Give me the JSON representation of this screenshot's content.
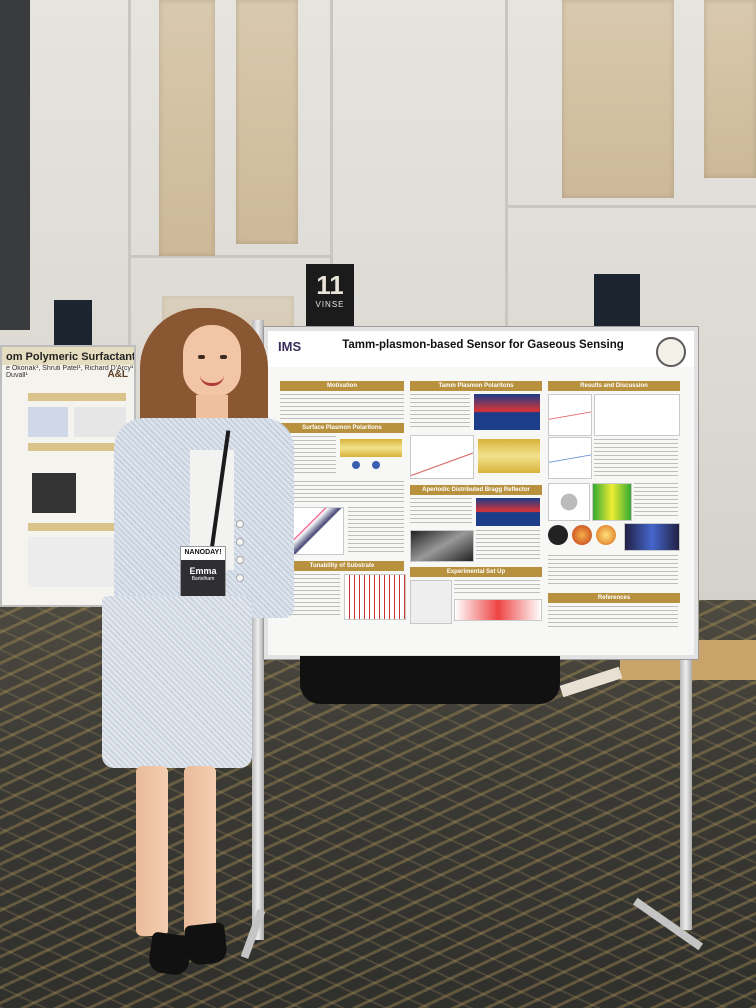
{
  "scene": {
    "booth_sign": {
      "number": "11",
      "text": "VINSE"
    },
    "main_poster": {
      "logo": "IMS",
      "title": "Tamm-plasmon-based Sensor for Gaseous Sensing",
      "sections": {
        "motivation": "Motivation",
        "surface_plasmon_polaritons": "Surface Plasmon Polaritons",
        "tunability_of_substrate": "Tunability of Substrate",
        "tamm_plasmon_polaritons": "Tamm Plasmon Polaritons",
        "aperiodic_distributed_bragg_reflector": "Aperiodic Distributed Bragg Reflector",
        "experimental_set_up": "Experimental Set Up",
        "results_and_discussion": "Results and Discussion",
        "references": "References"
      }
    },
    "left_poster": {
      "title": "om Polymeric Surfactants",
      "authors": "e Okonak¹, Shruti Patel¹, Richard D'Arcy¹",
      "authors2": "Duvall¹",
      "badge": "A&L"
    },
    "name_badge": {
      "event": "NANODAY!",
      "first_name": "Emma",
      "last_name": "Bartelham"
    }
  }
}
